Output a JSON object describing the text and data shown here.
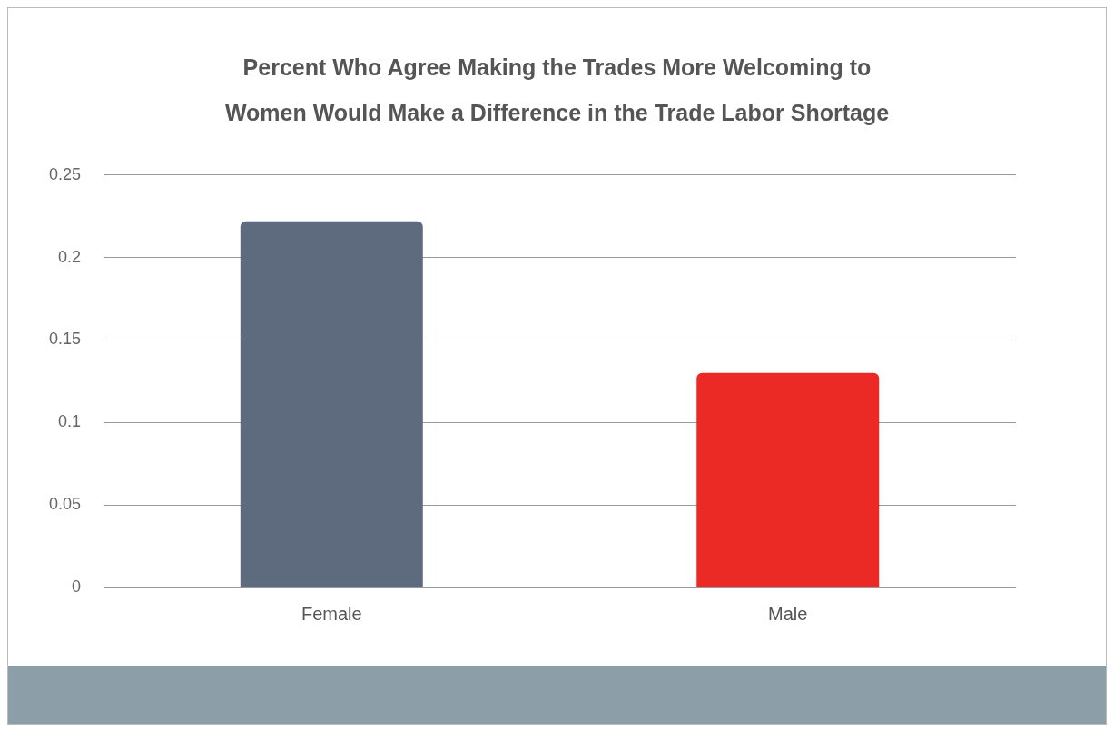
{
  "chart_data": {
    "type": "bar",
    "title": "Percent Who Agree Making the Trades More Welcoming to Women Would Make a Difference in the Trade Labor Shortage",
    "categories": [
      "Female",
      "Male"
    ],
    "values": [
      0.222,
      0.13
    ],
    "colors": [
      "#5e6b7f",
      "#ec2a25"
    ],
    "ylim": [
      0,
      0.25
    ],
    "yticks": [
      0,
      0.05,
      0.1,
      0.15,
      0.2,
      0.25
    ],
    "grid": "y",
    "legend": false
  }
}
